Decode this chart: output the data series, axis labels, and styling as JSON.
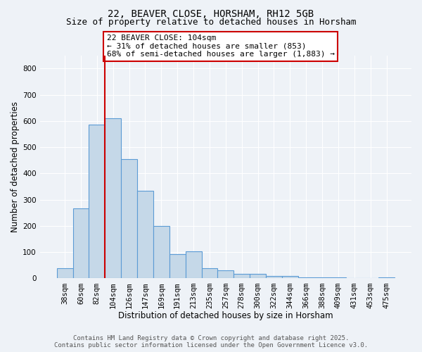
{
  "title_line1": "22, BEAVER CLOSE, HORSHAM, RH12 5GB",
  "title_line2": "Size of property relative to detached houses in Horsham",
  "xlabel": "Distribution of detached houses by size in Horsham",
  "ylabel": "Number of detached properties",
  "categories": [
    "38sqm",
    "60sqm",
    "82sqm",
    "104sqm",
    "126sqm",
    "147sqm",
    "169sqm",
    "191sqm",
    "213sqm",
    "235sqm",
    "257sqm",
    "278sqm",
    "300sqm",
    "322sqm",
    "344sqm",
    "366sqm",
    "388sqm",
    "409sqm",
    "431sqm",
    "453sqm",
    "475sqm"
  ],
  "values": [
    38,
    268,
    585,
    610,
    455,
    335,
    200,
    92,
    103,
    38,
    32,
    17,
    17,
    10,
    10,
    4,
    4,
    4,
    0,
    0,
    5
  ],
  "bar_color": "#c5d8e8",
  "bar_edge_color": "#5b9bd5",
  "red_line_index": 3,
  "red_line_color": "#cc0000",
  "annotation_text": "22 BEAVER CLOSE: 104sqm\n← 31% of detached houses are smaller (853)\n68% of semi-detached houses are larger (1,883) →",
  "annotation_box_color": "#ffffff",
  "annotation_box_edge_color": "#cc0000",
  "ylim": [
    0,
    850
  ],
  "yticks": [
    0,
    100,
    200,
    300,
    400,
    500,
    600,
    700,
    800
  ],
  "footnote_line1": "Contains HM Land Registry data © Crown copyright and database right 2025.",
  "footnote_line2": "Contains public sector information licensed under the Open Government Licence v3.0.",
  "background_color": "#eef2f7",
  "grid_color": "#ffffff",
  "title_fontsize": 10,
  "subtitle_fontsize": 9,
  "axis_label_fontsize": 8.5,
  "tick_fontsize": 7.5,
  "annotation_fontsize": 8,
  "footnote_fontsize": 6.5
}
